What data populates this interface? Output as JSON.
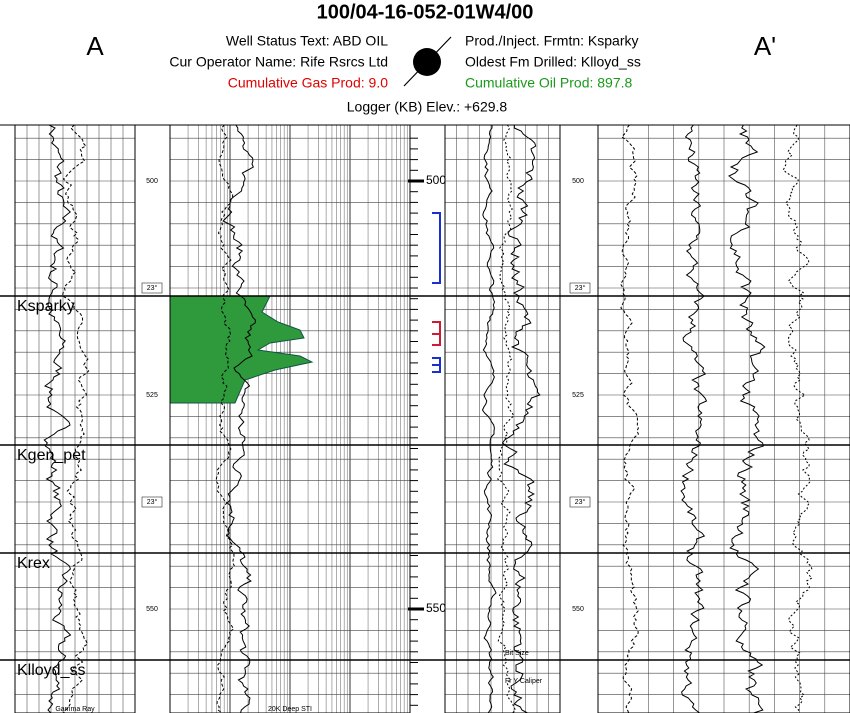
{
  "header": {
    "title": "100/04-16-052-01W4/00",
    "left_label": "A",
    "right_label": "A'",
    "info_left": [
      "Well Status Text: ABD OIL",
      "Cur Operator Name: Rife Rsrcs Ltd",
      "Cumulative Gas Prod: 9.0"
    ],
    "info_right": [
      "Prod./Inject. Frmtn: Ksparky",
      "Oldest Fm Drilled: Klloyd_ss",
      "Cumulative Oil Prod: 897.8"
    ],
    "elevation": "Logger (KB) Elev.: +629.8"
  },
  "depth_track": {
    "labels": [
      "500",
      "550"
    ]
  },
  "track_depths": [
    "500",
    "525",
    "550"
  ],
  "scale_tags": [
    "23°",
    "23°"
  ],
  "formation_tops": [
    "Ksparky",
    "Kgen_pet",
    "Krex",
    "Klloyd_ss"
  ],
  "curve_labels": [
    "Bit Size",
    "Fr Y Caliper"
  ],
  "footer_labels": [
    "Gamma Ray",
    "20K Deep STI"
  ]
}
